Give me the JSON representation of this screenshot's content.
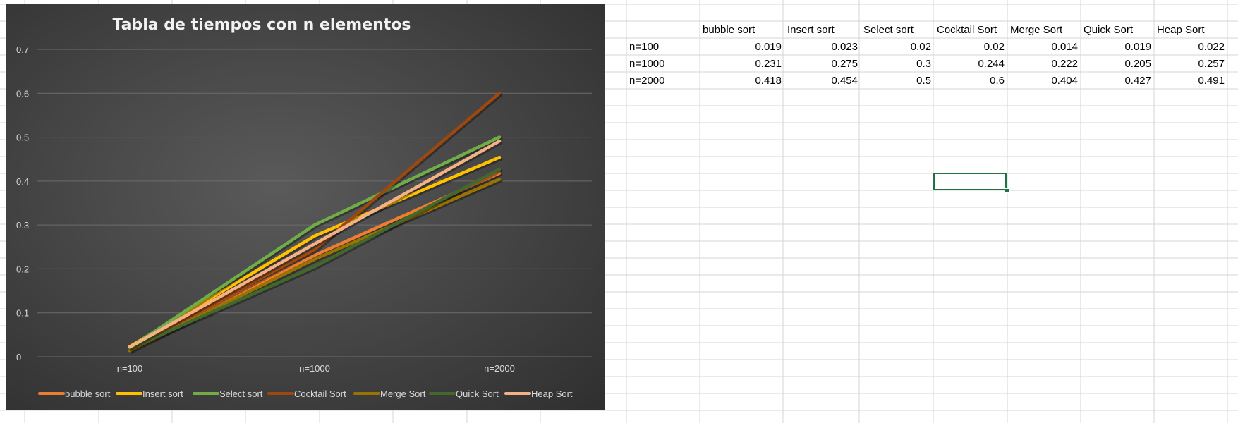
{
  "chart_data": {
    "type": "line",
    "title": "Tabla de tiempos con n elementos",
    "categories": [
      "n=100",
      "n=1000",
      "n=2000"
    ],
    "ylim": [
      0,
      0.7
    ],
    "yticks": [
      "0",
      "0.1",
      "0.2",
      "0.3",
      "0.4",
      "0.5",
      "0.6",
      "0.7"
    ],
    "grid": true,
    "legend_position": "bottom",
    "series": [
      {
        "name": "bubble sort",
        "values": [
          0.019,
          0.231,
          0.418
        ],
        "color": "#ed7d31"
      },
      {
        "name": "Insert sort",
        "values": [
          0.023,
          0.275,
          0.454
        ],
        "color": "#ffc000"
      },
      {
        "name": "Select sort",
        "values": [
          0.02,
          0.3,
          0.5
        ],
        "color": "#70ad47"
      },
      {
        "name": "Cocktail Sort",
        "values": [
          0.02,
          0.244,
          0.6
        ],
        "color": "#9e480e"
      },
      {
        "name": "Merge Sort",
        "values": [
          0.014,
          0.222,
          0.404
        ],
        "color": "#997300"
      },
      {
        "name": "Quick Sort",
        "values": [
          0.019,
          0.205,
          0.427
        ],
        "color": "#43682b"
      },
      {
        "name": "Heap Sort",
        "values": [
          0.022,
          0.257,
          0.491
        ],
        "color": "#f4b183"
      }
    ]
  },
  "sheet": {
    "headers": [
      "",
      "bubble sort",
      "Insert sort",
      "Select sort",
      "Cocktail Sort",
      "Merge Sort",
      "Quick Sort",
      "Heap Sort"
    ],
    "rows": [
      [
        "n=100",
        "0.019",
        "0.023",
        "0.02",
        "0.02",
        "0.014",
        "0.019",
        "0.022"
      ],
      [
        "n=1000",
        "0.231",
        "0.275",
        "0.3",
        "0.244",
        "0.222",
        "0.205",
        "0.257"
      ],
      [
        "n=2000",
        "0.418",
        "0.454",
        "0.5",
        "0.6",
        "0.404",
        "0.427",
        "0.491"
      ]
    ]
  },
  "colors": {
    "gridline": "#d4d4d4",
    "selection": "#217346",
    "chart_text": "#d9d9d9"
  }
}
